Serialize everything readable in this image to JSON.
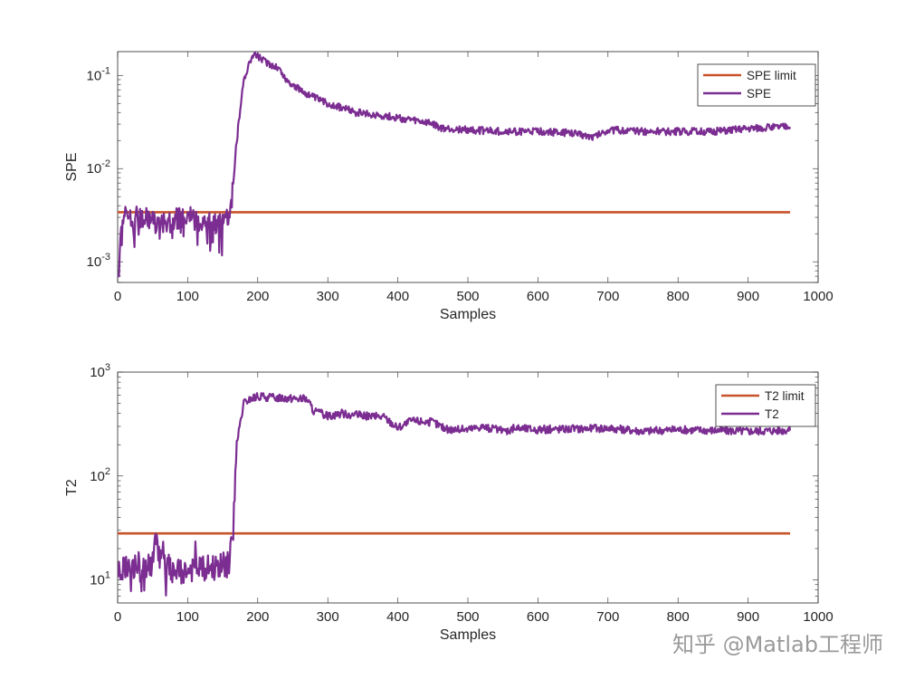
{
  "watermark": "知乎 @Matlab工程师",
  "colors": {
    "limit": "#c8532b",
    "stat": "#7b2d91",
    "axis": "#262626"
  },
  "chart_data": [
    {
      "type": "line",
      "ylabel": "SPE",
      "xlabel": "Samples",
      "yscale": "log",
      "xlim": [
        0,
        1000
      ],
      "ylim": [
        0.0006,
        0.18
      ],
      "xticks": [
        0,
        100,
        200,
        300,
        400,
        500,
        600,
        700,
        800,
        900,
        1000
      ],
      "yticks": [
        {
          "value": 0.001,
          "base": "10",
          "exp": "-3"
        },
        {
          "value": 0.01,
          "base": "10",
          "exp": "-2"
        },
        {
          "value": 0.1,
          "base": "10",
          "exp": "-1"
        }
      ],
      "legend_position": "top-right",
      "series": [
        {
          "name": "SPE limit",
          "color": "#c8532b",
          "x": [
            0,
            960
          ],
          "y": [
            0.0034,
            0.0034
          ]
        },
        {
          "name": "SPE",
          "color": "#7b2d91",
          "x": [
            0,
            5,
            10,
            20,
            40,
            60,
            80,
            100,
            120,
            140,
            155,
            162,
            170,
            180,
            190,
            195,
            200,
            210,
            220,
            230,
            240,
            260,
            280,
            300,
            320,
            340,
            360,
            380,
            400,
            420,
            450,
            460,
            500,
            550,
            600,
            650,
            680,
            700,
            750,
            800,
            850,
            900,
            950,
            960
          ],
          "y": [
            0.0007,
            0.0028,
            0.0032,
            0.003,
            0.003,
            0.0025,
            0.0028,
            0.003,
            0.0027,
            0.0026,
            0.0027,
            0.004,
            0.02,
            0.09,
            0.15,
            0.17,
            0.16,
            0.14,
            0.13,
            0.12,
            0.09,
            0.07,
            0.058,
            0.05,
            0.045,
            0.04,
            0.038,
            0.037,
            0.035,
            0.033,
            0.03,
            0.027,
            0.026,
            0.025,
            0.025,
            0.024,
            0.022,
            0.026,
            0.025,
            0.025,
            0.025,
            0.027,
            0.028,
            0.029
          ]
        }
      ]
    },
    {
      "type": "line",
      "ylabel": "T2",
      "xlabel": "Samples",
      "yscale": "log",
      "xlim": [
        0,
        1000
      ],
      "ylim": [
        6,
        1000
      ],
      "xticks": [
        0,
        100,
        200,
        300,
        400,
        500,
        600,
        700,
        800,
        900,
        1000
      ],
      "yticks": [
        {
          "value": 10,
          "base": "10",
          "exp": "1"
        },
        {
          "value": 100,
          "base": "10",
          "exp": "2"
        },
        {
          "value": 1000,
          "base": "10",
          "exp": "3"
        }
      ],
      "legend_position": "top-right",
      "series": [
        {
          "name": "T2 limit",
          "color": "#c8532b",
          "x": [
            0,
            960
          ],
          "y": [
            28,
            28
          ]
        },
        {
          "name": "T2",
          "color": "#7b2d91",
          "x": [
            0,
            10,
            30,
            50,
            55,
            60,
            80,
            100,
            120,
            140,
            160,
            165,
            170,
            180,
            190,
            200,
            220,
            250,
            270,
            280,
            300,
            320,
            350,
            380,
            400,
            420,
            450,
            470,
            500,
            520,
            550,
            570,
            600,
            650,
            700,
            750,
            800,
            850,
            900,
            950,
            960
          ],
          "y": [
            12,
            13,
            12,
            14,
            28,
            16,
            12,
            12,
            13,
            13,
            15,
            30,
            200,
            500,
            550,
            580,
            570,
            560,
            550,
            420,
            380,
            400,
            380,
            370,
            290,
            340,
            330,
            280,
            280,
            300,
            270,
            290,
            280,
            285,
            290,
            270,
            280,
            275,
            270,
            275,
            280
          ]
        }
      ]
    }
  ]
}
